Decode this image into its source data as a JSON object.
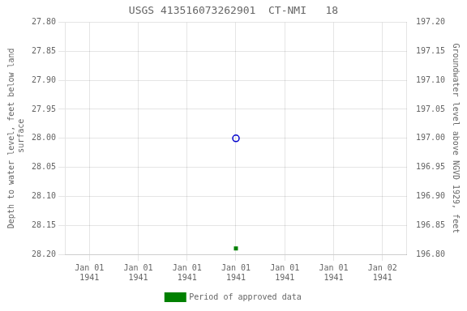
{
  "chart_data": {
    "type": "scatter",
    "title": "USGS 413516073262901  CT-NMI   18",
    "y_label": "Depth to water level, feet below land\n surface",
    "y2_label": "Groundwater level above NGVD 1929, feet",
    "categories": [
      "Jan 01\n1941",
      "Jan 01\n1941",
      "Jan 01\n1941",
      "Jan 01\n1941",
      "Jan 01\n1941",
      "Jan 01\n1941",
      "Jan 02\n1941"
    ],
    "series": [
      {
        "name": "Period of approved data",
        "color": "#008000",
        "marker": "square",
        "values": [
          null,
          null,
          null,
          28.19,
          null,
          null,
          null
        ]
      },
      {
        "color": "#0000cd",
        "marker": "circle_open",
        "values": [
          null,
          null,
          null,
          28.0,
          null,
          null,
          null
        ]
      }
    ],
    "ylim": [
      28.2,
      27.8
    ],
    "yticks": [
      {
        "value": 27.8,
        "label": "27.80"
      },
      {
        "value": 27.85,
        "label": "27.85"
      },
      {
        "value": 27.9,
        "label": "27.90"
      },
      {
        "value": 27.95,
        "label": "27.95"
      },
      {
        "value": 28.0,
        "label": "28.00"
      },
      {
        "value": 28.05,
        "label": "28.05"
      },
      {
        "value": 28.1,
        "label": "28.10"
      },
      {
        "value": 28.15,
        "label": "28.15"
      },
      {
        "value": 28.2,
        "label": "28.20"
      }
    ],
    "y2lim": [
      196.8,
      197.2
    ],
    "y2ticks": [
      {
        "value": 196.8,
        "label": "196.80"
      },
      {
        "value": 196.85,
        "label": "196.85"
      },
      {
        "value": 196.9,
        "label": "196.90"
      },
      {
        "value": 196.95,
        "label": "196.95"
      },
      {
        "value": 197.0,
        "label": "197.00"
      },
      {
        "value": 197.05,
        "label": "197.05"
      },
      {
        "value": 197.1,
        "label": "197.10"
      },
      {
        "value": 197.15,
        "label": "197.15"
      },
      {
        "value": 197.2,
        "label": "197.20"
      }
    ],
    "grid": true,
    "legend": "bottom"
  }
}
